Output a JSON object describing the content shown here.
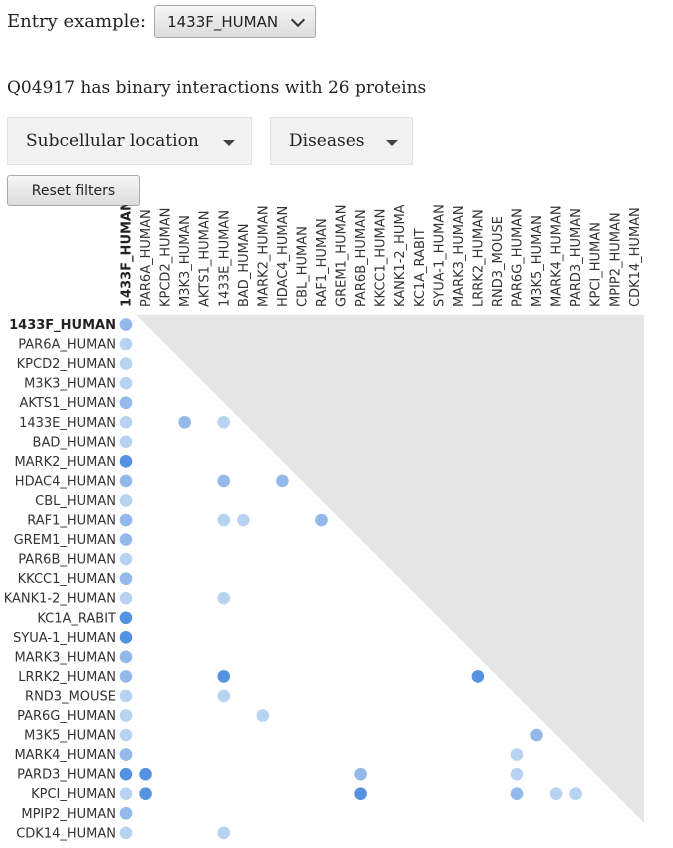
{
  "entry": {
    "label": "Entry example:",
    "selected": "1433F_HUMAN"
  },
  "summary": "Q04917 has binary interactions with 26 proteins",
  "filters": {
    "subcellular": "Subcellular location",
    "diseases": "Diseases"
  },
  "reset_label": "Reset filters",
  "colors": {
    "light": "#b8d3f2",
    "medium": "#93b9ea",
    "dark": "#5592e2",
    "triangle": "#e6e6e6"
  },
  "proteins": [
    "1433F_HUMAN",
    "PAR6A_HUMAN",
    "KPCD2_HUMAN",
    "M3K3_HUMAN",
    "AKTS1_HUMAN",
    "1433E_HUMAN",
    "BAD_HUMAN",
    "MARK2_HUMAN",
    "HDAC4_HUMAN",
    "CBL_HUMAN",
    "RAF1_HUMAN",
    "GREM1_HUMAN",
    "PAR6B_HUMAN",
    "KKCC1_HUMAN",
    "KANK1-2_HUMAN",
    "KC1A_RABIT",
    "SYUA-1_HUMAN",
    "MARK3_HUMAN",
    "LRRK2_HUMAN",
    "RND3_MOUSE",
    "PAR6G_HUMAN",
    "M3K5_HUMAN",
    "MARK4_HUMAN",
    "PARD3_HUMAN",
    "KPCI_HUMAN",
    "MPIP2_HUMAN",
    "CDK14_HUMAN"
  ],
  "interactions": [
    {
      "row": 0,
      "col": 0,
      "level": "medium"
    },
    {
      "row": 1,
      "col": 0,
      "level": "light"
    },
    {
      "row": 2,
      "col": 0,
      "level": "light"
    },
    {
      "row": 3,
      "col": 0,
      "level": "light"
    },
    {
      "row": 4,
      "col": 0,
      "level": "medium"
    },
    {
      "row": 5,
      "col": 0,
      "level": "light"
    },
    {
      "row": 5,
      "col": 3,
      "level": "medium"
    },
    {
      "row": 5,
      "col": 5,
      "level": "light"
    },
    {
      "row": 6,
      "col": 0,
      "level": "light"
    },
    {
      "row": 7,
      "col": 0,
      "level": "dark"
    },
    {
      "row": 8,
      "col": 0,
      "level": "medium"
    },
    {
      "row": 8,
      "col": 5,
      "level": "medium"
    },
    {
      "row": 8,
      "col": 8,
      "level": "medium"
    },
    {
      "row": 9,
      "col": 0,
      "level": "light"
    },
    {
      "row": 10,
      "col": 0,
      "level": "medium"
    },
    {
      "row": 10,
      "col": 5,
      "level": "light"
    },
    {
      "row": 10,
      "col": 6,
      "level": "light"
    },
    {
      "row": 10,
      "col": 10,
      "level": "medium"
    },
    {
      "row": 11,
      "col": 0,
      "level": "medium"
    },
    {
      "row": 12,
      "col": 0,
      "level": "light"
    },
    {
      "row": 13,
      "col": 0,
      "level": "medium"
    },
    {
      "row": 14,
      "col": 0,
      "level": "light"
    },
    {
      "row": 14,
      "col": 5,
      "level": "light"
    },
    {
      "row": 15,
      "col": 0,
      "level": "dark"
    },
    {
      "row": 16,
      "col": 0,
      "level": "dark"
    },
    {
      "row": 17,
      "col": 0,
      "level": "medium"
    },
    {
      "row": 18,
      "col": 0,
      "level": "medium"
    },
    {
      "row": 18,
      "col": 5,
      "level": "dark"
    },
    {
      "row": 18,
      "col": 18,
      "level": "dark"
    },
    {
      "row": 19,
      "col": 0,
      "level": "light"
    },
    {
      "row": 19,
      "col": 5,
      "level": "light"
    },
    {
      "row": 20,
      "col": 0,
      "level": "light"
    },
    {
      "row": 20,
      "col": 7,
      "level": "light"
    },
    {
      "row": 21,
      "col": 0,
      "level": "light"
    },
    {
      "row": 21,
      "col": 21,
      "level": "medium"
    },
    {
      "row": 22,
      "col": 0,
      "level": "medium"
    },
    {
      "row": 22,
      "col": 20,
      "level": "light"
    },
    {
      "row": 23,
      "col": 0,
      "level": "dark"
    },
    {
      "row": 23,
      "col": 1,
      "level": "dark"
    },
    {
      "row": 23,
      "col": 12,
      "level": "medium"
    },
    {
      "row": 23,
      "col": 20,
      "level": "light"
    },
    {
      "row": 24,
      "col": 0,
      "level": "light"
    },
    {
      "row": 24,
      "col": 1,
      "level": "dark"
    },
    {
      "row": 24,
      "col": 12,
      "level": "dark"
    },
    {
      "row": 24,
      "col": 20,
      "level": "medium"
    },
    {
      "row": 24,
      "col": 22,
      "level": "light"
    },
    {
      "row": 24,
      "col": 23,
      "level": "light"
    },
    {
      "row": 25,
      "col": 0,
      "level": "medium"
    },
    {
      "row": 26,
      "col": 0,
      "level": "light"
    },
    {
      "row": 26,
      "col": 5,
      "level": "light"
    }
  ]
}
